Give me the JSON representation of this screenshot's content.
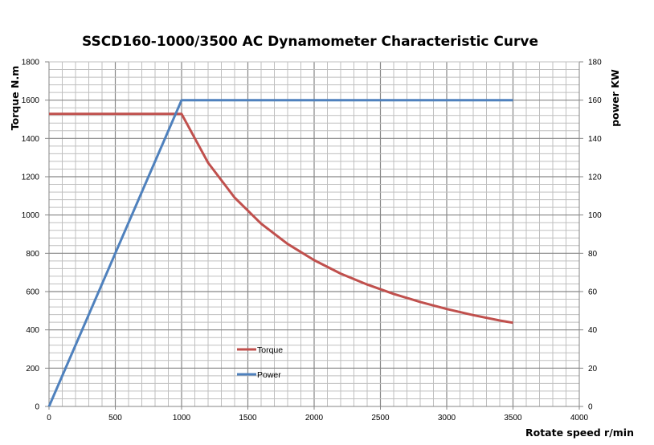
{
  "chart_data": {
    "type": "line",
    "title": "SSCD160-1000/3500 AC Dynamometer Characteristic Curve",
    "xlabel": "Rotate speed r/min",
    "ylabel": "Torque N.m",
    "y2label": "power KW",
    "xlim": [
      0,
      4000
    ],
    "ylim": [
      0,
      1800
    ],
    "y2lim": [
      0,
      180
    ],
    "xticks": [
      "0",
      "500",
      "1000",
      "1500",
      "2000",
      "2500",
      "3000",
      "3500",
      "4000"
    ],
    "yticks": [
      "0",
      "200",
      "400",
      "600",
      "800",
      "1000",
      "1200",
      "1400",
      "1600",
      "1800"
    ],
    "y2ticks": [
      "0",
      "20",
      "40",
      "60",
      "80",
      "100",
      "120",
      "140",
      "160",
      "180"
    ],
    "grid": true,
    "legend_position": "center-left",
    "series": [
      {
        "name": "Torque",
        "axis": "left",
        "color": "#C0504D",
        "x": [
          0,
          1000,
          1200,
          1400,
          1600,
          1800,
          2000,
          2200,
          2400,
          2600,
          2800,
          3000,
          3200,
          3400,
          3500
        ],
        "y": [
          1528,
          1528,
          1273,
          1091,
          955,
          849,
          764,
          694,
          637,
          588,
          546,
          509,
          477,
          449,
          437
        ]
      },
      {
        "name": "Power",
        "axis": "right",
        "color": "#4F81BD",
        "x": [
          0,
          1000,
          3500
        ],
        "y": [
          0,
          160,
          160
        ]
      }
    ]
  }
}
